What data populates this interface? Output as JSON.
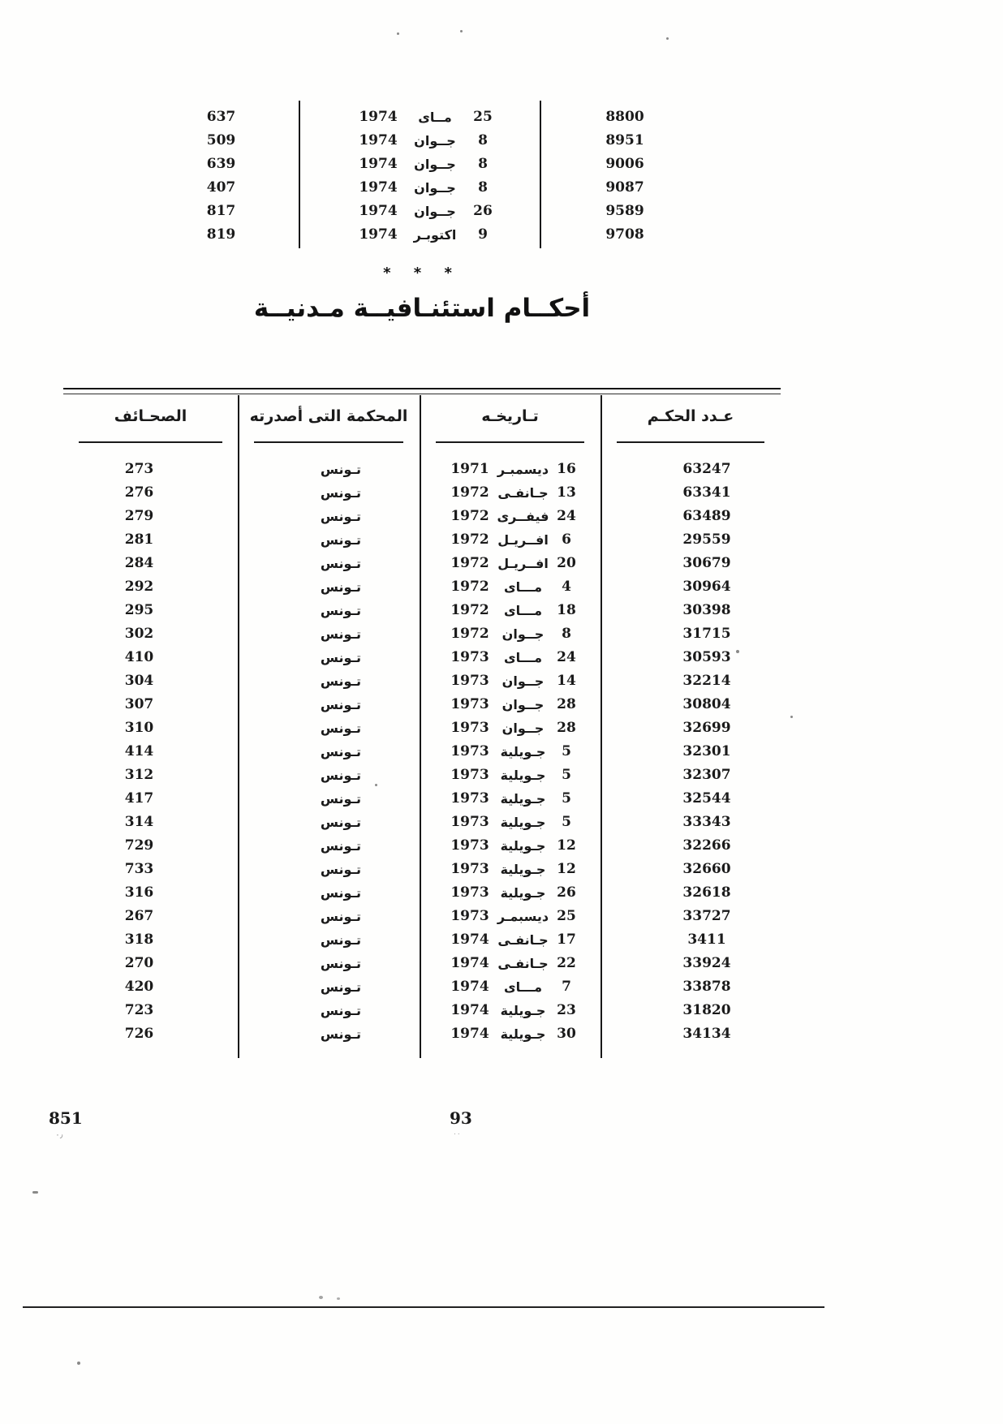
{
  "divider_stars": "* * *",
  "section_title": "أحكــام استئنـافيــة مـدنيــة",
  "top_table": {
    "rows": [
      {
        "page": "637",
        "day": "25",
        "month": "مــاى",
        "year": "1974",
        "number": "8800"
      },
      {
        "page": "509",
        "day": "8",
        "month": "جــوان",
        "year": "1974",
        "number": "8951"
      },
      {
        "page": "639",
        "day": "8",
        "month": "جــوان",
        "year": "1974",
        "number": "9006"
      },
      {
        "page": "407",
        "day": "8",
        "month": "جــوان",
        "year": "1974",
        "number": "9087"
      },
      {
        "page": "817",
        "day": "26",
        "month": "جــوان",
        "year": "1974",
        "number": "9589"
      },
      {
        "page": "819",
        "day": "9",
        "month": "اكتوبـر",
        "year": "1974",
        "number": "9708"
      }
    ]
  },
  "main_table": {
    "headers": {
      "pages": "الصحـائف",
      "court": "المحكمة التى أصدرته",
      "date": "تـاريخـه",
      "number": "عـدد الحكـم"
    },
    "rows": [
      {
        "pages": "273",
        "court": "تـونس",
        "day": "16",
        "month": "ديسمبـر",
        "year": "1971",
        "number": "63247"
      },
      {
        "pages": "276",
        "court": "تـونس",
        "day": "13",
        "month": "جـانفـى",
        "year": "1972",
        "number": "63341"
      },
      {
        "pages": "279",
        "court": "تـونس",
        "day": "24",
        "month": "فيفــرى",
        "year": "1972",
        "number": "63489"
      },
      {
        "pages": "281",
        "court": "تـونس",
        "day": "6",
        "month": "افــريـل",
        "year": "1972",
        "number": "29559"
      },
      {
        "pages": "284",
        "court": "تـونس",
        "day": "20",
        "month": "افــريـل",
        "year": "1972",
        "number": "30679"
      },
      {
        "pages": "292",
        "court": "تـونس",
        "day": "4",
        "month": "مـــاى",
        "year": "1972",
        "number": "30964"
      },
      {
        "pages": "295",
        "court": "تـونس",
        "day": "18",
        "month": "مـــاى",
        "year": "1972",
        "number": "30398"
      },
      {
        "pages": "302",
        "court": "تـونس",
        "day": "8",
        "month": "جــوان",
        "year": "1972",
        "number": "31715"
      },
      {
        "pages": "410",
        "court": "تـونس",
        "day": "24",
        "month": "مـــاى",
        "year": "1973",
        "number": "30593"
      },
      {
        "pages": "304",
        "court": "تـونس",
        "day": "14",
        "month": "جــوان",
        "year": "1973",
        "number": "32214"
      },
      {
        "pages": "307",
        "court": "تـونس",
        "day": "28",
        "month": "جــوان",
        "year": "1973",
        "number": "30804"
      },
      {
        "pages": "310",
        "court": "تـونس",
        "day": "28",
        "month": "جــوان",
        "year": "1973",
        "number": "32699"
      },
      {
        "pages": "414",
        "court": "تـونس",
        "day": "5",
        "month": "جـويلية",
        "year": "1973",
        "number": "32301"
      },
      {
        "pages": "312",
        "court": "تـونس",
        "day": "5",
        "month": "جـويلية",
        "year": "1973",
        "number": "32307"
      },
      {
        "pages": "417",
        "court": "تـونس",
        "day": "5",
        "month": "جـويلية",
        "year": "1973",
        "number": "32544"
      },
      {
        "pages": "314",
        "court": "تـونس",
        "day": "5",
        "month": "جـويلية",
        "year": "1973",
        "number": "33343"
      },
      {
        "pages": "729",
        "court": "تـونس",
        "day": "12",
        "month": "جـويلية",
        "year": "1973",
        "number": "32266"
      },
      {
        "pages": "733",
        "court": "تـونس",
        "day": "12",
        "month": "جـويلية",
        "year": "1973",
        "number": "32660"
      },
      {
        "pages": "316",
        "court": "تـونس",
        "day": "26",
        "month": "جـويلية",
        "year": "1973",
        "number": "32618"
      },
      {
        "pages": "267",
        "court": "تـونس",
        "day": "25",
        "month": "ديسبمـر",
        "year": "1973",
        "number": "33727"
      },
      {
        "pages": "318",
        "court": "تـونس",
        "day": "17",
        "month": "جـانفـى",
        "year": "1974",
        "number": "3411"
      },
      {
        "pages": "270",
        "court": "تـونس",
        "day": "22",
        "month": "جـانفـى",
        "year": "1974",
        "number": "33924"
      },
      {
        "pages": "420",
        "court": "تـونس",
        "day": "7",
        "month": "مـــاى",
        "year": "1974",
        "number": "33878"
      },
      {
        "pages": "723",
        "court": "تـونس",
        "day": "23",
        "month": "جـويلية",
        "year": "1974",
        "number": "31820"
      },
      {
        "pages": "726",
        "court": "تـونس",
        "day": "30",
        "month": "جـويلية",
        "year": "1974",
        "number": "34134"
      }
    ]
  },
  "footer": {
    "left_page_number": "851",
    "center_page_number": "93"
  }
}
